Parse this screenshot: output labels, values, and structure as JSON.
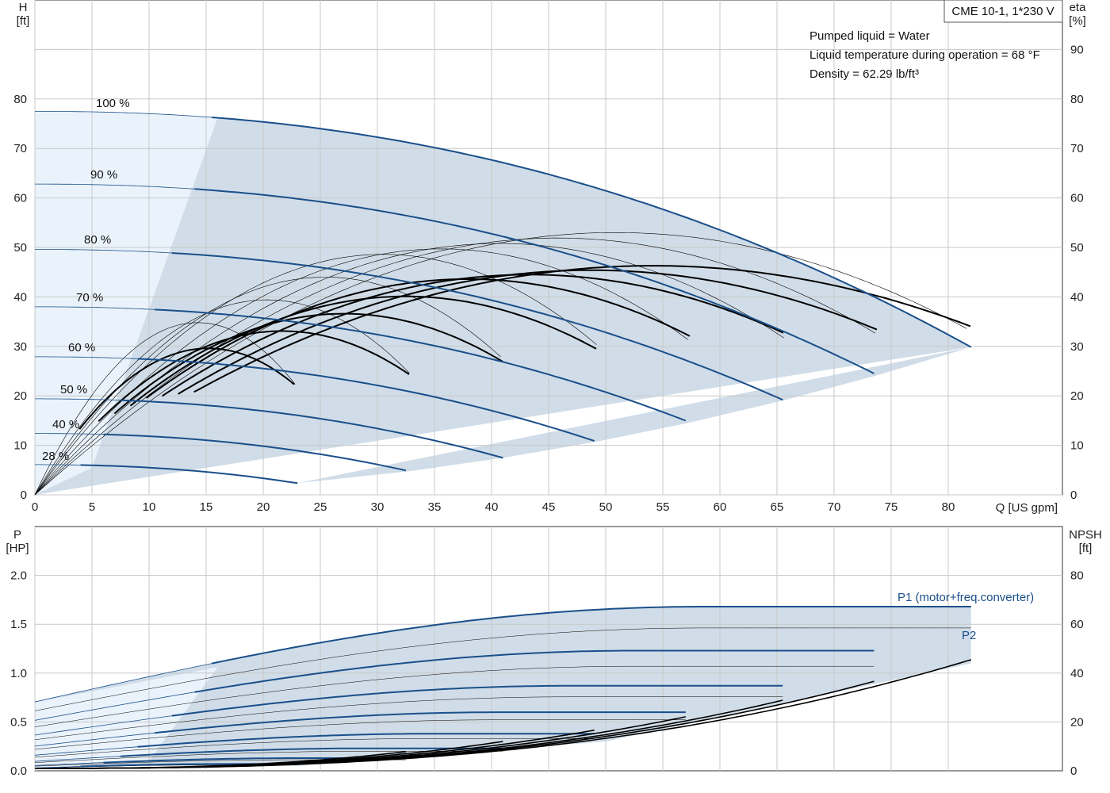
{
  "chart_title": "CME 10-1, 1*230 V",
  "notes": [
    "Pumped liquid = Water",
    "Liquid temperature during operation = 68 °F",
    "Density = 62.29 lb/ft³"
  ],
  "colors": {
    "envelope_fill": "#d0dde8",
    "envelope_light": "#eaf3fb",
    "curve_blue": "#1a4f8a",
    "curve_black": "#000000",
    "grid": "#c8c8c8"
  },
  "chart_data": [
    {
      "type": "line",
      "name": "head-efficiency",
      "xlabel_top": "Q [US gpm]",
      "ylabel_left": [
        "H",
        "[ft]"
      ],
      "ylabel_right": [
        "eta",
        "[%]"
      ],
      "xlim": [
        0,
        90
      ],
      "xticks": [
        0,
        5,
        10,
        15,
        20,
        25,
        30,
        35,
        40,
        45,
        50,
        55,
        60,
        65,
        70,
        75,
        80
      ],
      "ylim_left": [
        0,
        100
      ],
      "yticks_left": [
        0,
        10,
        20,
        30,
        40,
        50,
        60,
        70,
        80
      ],
      "ylim_right": [
        0,
        100
      ],
      "yticks_right": [
        0,
        10,
        20,
        30,
        40,
        50,
        60,
        70,
        80,
        90
      ],
      "grid": true,
      "speed_labels": [
        "100 %",
        "90 %",
        "80 %",
        "70 %",
        "60 %",
        "50 %",
        "40 %",
        "28 %"
      ],
      "head_curves": [
        {
          "speed": "100 %",
          "h0": 77.5,
          "qmax": 82
        },
        {
          "speed": "90 %",
          "h0": 62.8,
          "qmax": 73.8
        },
        {
          "speed": "80 %",
          "h0": 49.6,
          "qmax": 65.6
        },
        {
          "speed": "70 %",
          "h0": 38.0,
          "qmax": 57.4
        },
        {
          "speed": "60 %",
          "h0": 27.9,
          "qmax": 49.2
        },
        {
          "speed": "50 %",
          "h0": 19.4,
          "qmax": 41.0
        },
        {
          "speed": "40 %",
          "h0": 12.4,
          "qmax": 32.8
        },
        {
          "speed": "28 %",
          "h0": 6.1,
          "qmax": 23.0
        }
      ],
      "eta_curves": [
        {
          "qmax": 82,
          "end": 36.8
        },
        {
          "qmax": 73.8,
          "end": 36.6
        },
        {
          "qmax": 65.6,
          "end": 36.0
        },
        {
          "qmax": 57.4,
          "end": 35.4
        },
        {
          "qmax": 49.2,
          "end": 34.0
        },
        {
          "qmax": 41.0,
          "end": 32.3
        },
        {
          "qmax": 32.8,
          "end": 29.0
        },
        {
          "qmax": 23.0,
          "end": 22.2
        }
      ]
    },
    {
      "type": "line",
      "name": "power-npsh",
      "ylabel_left": [
        "P",
        "[HP]"
      ],
      "ylabel_right": [
        "NPSH",
        "[ft]"
      ],
      "xlim": [
        0,
        90
      ],
      "ylim_left": [
        0,
        2.0
      ],
      "yticks_left": [
        "0.0",
        "0.5",
        "1.0",
        "1.5",
        "2.0"
      ],
      "ylim_right": [
        0,
        80
      ],
      "yticks_right": [
        0,
        20,
        40,
        60,
        80
      ],
      "grid": true,
      "series": [
        {
          "name": "P1 (motor+freq.converter)",
          "p_max": 1.68,
          "qmax": 82
        },
        {
          "name": "P2",
          "p_max": 1.46,
          "qmax": 82
        }
      ],
      "p1_curves": [
        {
          "qmax": 82,
          "p": 1.68
        },
        {
          "qmax": 73.8,
          "p": 1.23
        },
        {
          "qmax": 65.6,
          "p": 0.87
        },
        {
          "qmax": 57.4,
          "p": 0.6
        },
        {
          "qmax": 49.2,
          "p": 0.38
        },
        {
          "qmax": 41.0,
          "p": 0.23
        },
        {
          "qmax": 32.8,
          "p": 0.13
        },
        {
          "qmax": 23.0,
          "p": 0.07
        }
      ],
      "npsh_curves": [
        {
          "qmax": 82,
          "npsh": 44.5
        },
        {
          "qmax": 73.8,
          "npsh": 36.0
        },
        {
          "qmax": 65.6,
          "npsh": 28.0
        },
        {
          "qmax": 57.4,
          "npsh": 21.5
        },
        {
          "qmax": 49.2,
          "npsh": 15.8
        },
        {
          "qmax": 41.0,
          "npsh": 11.0
        },
        {
          "qmax": 32.8,
          "npsh": 7.0
        }
      ]
    }
  ]
}
